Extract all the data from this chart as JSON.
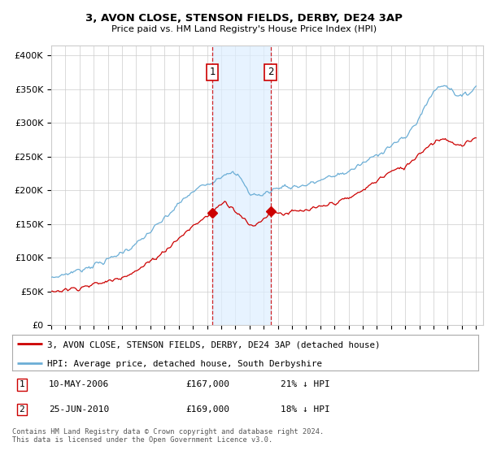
{
  "title1": "3, AVON CLOSE, STENSON FIELDS, DERBY, DE24 3AP",
  "title2": "Price paid vs. HM Land Registry's House Price Index (HPI)",
  "ylabel_ticks": [
    "£0",
    "£50K",
    "£100K",
    "£150K",
    "£200K",
    "£250K",
    "£300K",
    "£350K",
    "£400K"
  ],
  "ytick_vals": [
    0,
    50000,
    100000,
    150000,
    200000,
    250000,
    300000,
    350000,
    400000
  ],
  "ylim": [
    0,
    415000
  ],
  "xlim_start": 1995.0,
  "xlim_end": 2025.5,
  "hpi_color": "#6baed6",
  "price_color": "#cc0000",
  "sale1_year": 2006.37,
  "sale1_price": 167000,
  "sale2_year": 2010.48,
  "sale2_price": 169000,
  "sale1_label": "10-MAY-2006",
  "sale1_amount": "£167,000",
  "sale1_hpi": "21% ↓ HPI",
  "sale2_label": "25-JUN-2010",
  "sale2_amount": "£169,000",
  "sale2_hpi": "18% ↓ HPI",
  "legend_house": "3, AVON CLOSE, STENSON FIELDS, DERBY, DE24 3AP (detached house)",
  "legend_hpi": "HPI: Average price, detached house, South Derbyshire",
  "footnote": "Contains HM Land Registry data © Crown copyright and database right 2024.\nThis data is licensed under the Open Government Licence v3.0.",
  "bg_color": "#ffffff",
  "plot_bg": "#ffffff",
  "span_color": "#ddeeff"
}
